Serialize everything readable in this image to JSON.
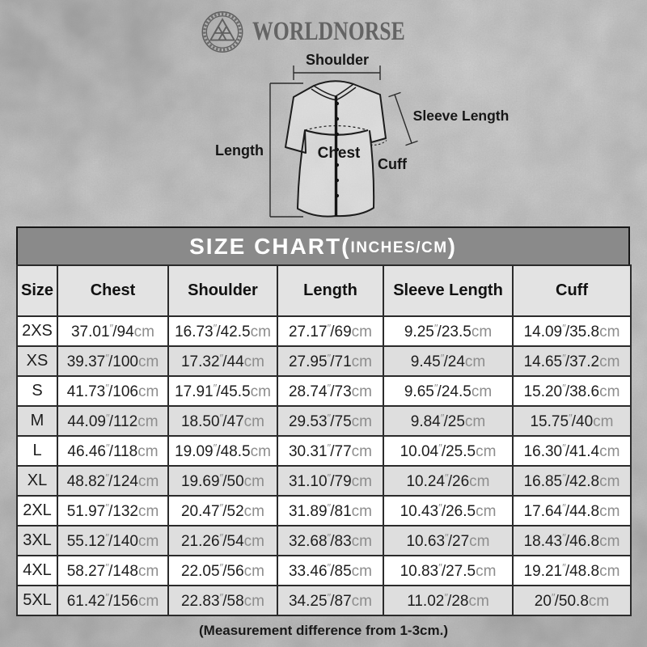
{
  "brand": {
    "name": "WORLDNORSE",
    "logo_icon": "valknut-icon"
  },
  "diagram": {
    "labels": {
      "shoulder": "Shoulder",
      "sleeve_length": "Sleeve Length",
      "length": "Length",
      "chest": "Chest",
      "cuff": "Cuff"
    }
  },
  "size_chart": {
    "title": {
      "prefix": "SIZE CHART(",
      "small": "INCHES/CM",
      "suffix": ")"
    },
    "columns": [
      "Size",
      "Chest",
      "Shoulder",
      "Length",
      "Sleeve Length",
      "Cuff"
    ],
    "rows": [
      {
        "size": "2XS",
        "values": [
          "37.01″/94cm",
          "16.73″/42.5cm",
          "27.17″/69cm",
          "9.25″/23.5cm",
          "14.09″/35.8cm"
        ]
      },
      {
        "size": "XS",
        "values": [
          "39.37″/100cm",
          "17.32″/44cm",
          "27.95″/71cm",
          "9.45″/24cm",
          "14.65″/37.2cm"
        ]
      },
      {
        "size": "S",
        "values": [
          "41.73″/106cm",
          "17.91″/45.5cm",
          "28.74″/73cm",
          "9.65″/24.5cm",
          "15.20″/38.6cm"
        ]
      },
      {
        "size": "M",
        "values": [
          "44.09″/112cm",
          "18.50″/47cm",
          "29.53″/75cm",
          "9.84″/25cm",
          "15.75″/40cm"
        ]
      },
      {
        "size": "L",
        "values": [
          "46.46″/118cm",
          "19.09″/48.5cm",
          "30.31″/77cm",
          "10.04″/25.5cm",
          "16.30″/41.4cm"
        ]
      },
      {
        "size": "XL",
        "values": [
          "48.82″/124cm",
          "19.69″/50cm",
          "31.10″/79cm",
          "10.24″/26cm",
          "16.85″/42.8cm"
        ]
      },
      {
        "size": "2XL",
        "values": [
          "51.97″/132cm",
          "20.47″/52cm",
          "31.89″/81cm",
          "10.43″/26.5cm",
          "17.64″/44.8cm"
        ]
      },
      {
        "size": "3XL",
        "values": [
          "55.12″/140cm",
          "21.26″/54cm",
          "32.68″/83cm",
          "10.63″/27cm",
          "18.43″/46.8cm"
        ]
      },
      {
        "size": "4XL",
        "values": [
          "58.27″/148cm",
          "22.05″/56cm",
          "33.46″/85cm",
          "10.83″/27.5cm",
          "19.21″/48.8cm"
        ]
      },
      {
        "size": "5XL",
        "values": [
          "61.42″/156cm",
          "22.83″/58cm",
          "34.25″/87cm",
          "11.02″/28cm",
          "20″/50.8cm"
        ]
      }
    ],
    "footnote": "(Measurement difference from 1-3cm.)"
  },
  "colors": {
    "background": "#ABABAB",
    "band": "#8A8A8A",
    "band_text": "#FFFFFF",
    "row_stripe": "#DEDEDE",
    "header_row": "#E3E3E3",
    "ink": "#1D1D1D",
    "unit_gray": "#8D8D8D",
    "line": "#1C1C1C",
    "logo_gray": "#646464"
  }
}
